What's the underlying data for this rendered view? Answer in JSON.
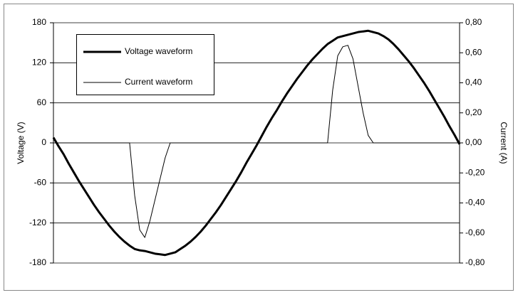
{
  "chart_data": {
    "type": "line",
    "y_label": "Voltage (V)",
    "y2_label": "Current (A)",
    "ylim": [
      -180,
      180
    ],
    "yticks": [
      -180,
      -120,
      -60,
      0,
      60,
      120,
      180
    ],
    "y2lim": [
      -0.8,
      0.8
    ],
    "y2ticks": [
      {
        "value": -0.8,
        "label": "-0,80"
      },
      {
        "value": -0.6,
        "label": "-0,60"
      },
      {
        "value": -0.4,
        "label": "-0,40"
      },
      {
        "value": -0.2,
        "label": "-0,20"
      },
      {
        "value": 0,
        "label": "0,00"
      },
      {
        "value": 0.2,
        "label": "0,20"
      },
      {
        "value": 0.4,
        "label": "0,40"
      },
      {
        "value": 0.6,
        "label": "0,60"
      },
      {
        "value": 0.8,
        "label": "0,80"
      }
    ],
    "grid": true,
    "legend": "upper left",
    "series": [
      {
        "name": "Voltage waveform",
        "color": "#000000",
        "width": 3,
        "values": [
          8,
          -5,
          -17,
          -31,
          -44,
          -57,
          -69,
          -81,
          -93,
          -104,
          -114,
          -124,
          -133,
          -141,
          -148,
          -154,
          -159,
          -161,
          -162,
          -164,
          -166,
          -167,
          -168,
          -166,
          -164,
          -159,
          -154,
          -148,
          -141,
          -133,
          -124,
          -114,
          -104,
          -93,
          -81,
          -69,
          -57,
          -44,
          -30,
          -17,
          -4,
          10,
          24,
          37,
          49,
          62,
          74,
          85,
          96,
          106,
          116,
          125,
          133,
          141,
          148,
          153,
          158,
          160,
          162,
          164,
          166,
          167,
          168,
          166,
          164,
          160,
          155,
          148,
          140,
          131,
          122,
          112,
          101,
          90,
          78,
          65,
          52,
          39,
          25,
          12,
          -2
        ]
      },
      {
        "name": "Current waveform",
        "color": "#000000",
        "width": 1,
        "axis": "y2",
        "values": [
          0,
          0,
          0,
          0,
          0,
          0,
          0,
          0,
          0,
          0,
          0,
          0,
          0,
          0,
          0,
          0,
          -0.35,
          -0.58,
          -0.63,
          -0.52,
          -0.38,
          -0.24,
          -0.1,
          0,
          0,
          0,
          0,
          0,
          0,
          0,
          0,
          0,
          0,
          0,
          0,
          0,
          0,
          0,
          0,
          0,
          0,
          0,
          0,
          0,
          0,
          0,
          0,
          0,
          0,
          0,
          0,
          0,
          0,
          0,
          0,
          0.35,
          0.58,
          0.64,
          0.65,
          0.56,
          0.38,
          0.2,
          0.05,
          0,
          0,
          0,
          0,
          0,
          0,
          0,
          0,
          0,
          0,
          0,
          0,
          0,
          0,
          0,
          0,
          0,
          0
        ]
      }
    ]
  }
}
